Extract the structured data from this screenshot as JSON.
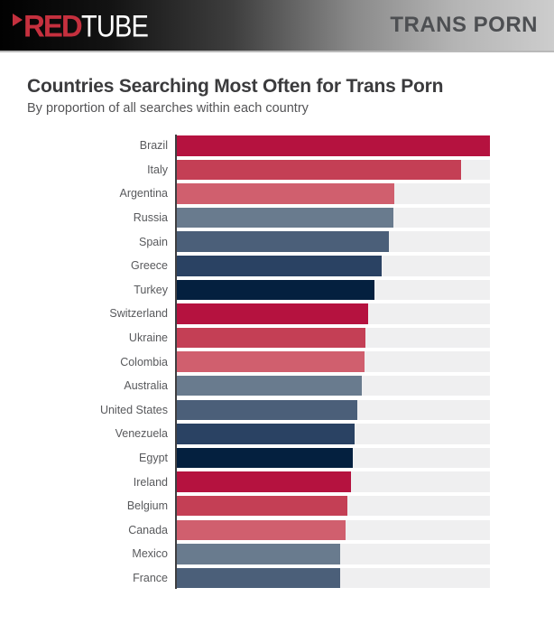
{
  "header": {
    "logo": {
      "red_text": "RED",
      "white_text": "TUBE"
    },
    "right_title": "TRANS PORN"
  },
  "title": "Countries Searching Most Often for Trans Porn",
  "subtitle": "By proportion of all searches within each country",
  "colors": {
    "brand_red": "#c5303e",
    "header_title_text": "#4d4f52",
    "title_text": "#3b3b3d",
    "subtitle_text": "#545456",
    "label_text": "#58595c",
    "track": "#efeff0",
    "axis": "#3f3f41",
    "bar_palette_cycle": [
      "#b5123f",
      "#c43f55",
      "#d05f6e",
      "#697b8e",
      "#4b5f79",
      "#2a4263",
      "#04203f"
    ]
  },
  "chart_data": {
    "type": "bar",
    "orientation": "horizontal",
    "title": "Countries Searching Most Often for Trans Porn",
    "subtitle": "By proportion of all searches within each country",
    "categories": [
      "Brazil",
      "Italy",
      "Argentina",
      "Russia",
      "Spain",
      "Greece",
      "Turkey",
      "Switzerland",
      "Ukraine",
      "Colombia",
      "Australia",
      "United States",
      "Venezuela",
      "Egypt",
      "Ireland",
      "Belgium",
      "Canada",
      "Mexico",
      "France"
    ],
    "values_percent_of_max": [
      100,
      90.7,
      69.5,
      69.2,
      67.6,
      65.3,
      63.1,
      61.0,
      60.2,
      59.9,
      59.2,
      57.6,
      56.8,
      56.2,
      55.7,
      54.4,
      53.8,
      52.3,
      52.3
    ],
    "bar_colors": [
      "#b5123f",
      "#c43f55",
      "#d05f6e",
      "#697b8e",
      "#4b5f79",
      "#2a4263",
      "#04203f",
      "#b5123f",
      "#c43f55",
      "#d05f6e",
      "#697b8e",
      "#4b5f79",
      "#2a4263",
      "#04203f",
      "#b5123f",
      "#c43f55",
      "#d05f6e",
      "#697b8e",
      "#4b5f79"
    ],
    "value_labels_shown": false,
    "axis_tick_labels_shown": false,
    "grid": false,
    "legend": false,
    "xlim_percent": [
      0,
      100
    ]
  }
}
